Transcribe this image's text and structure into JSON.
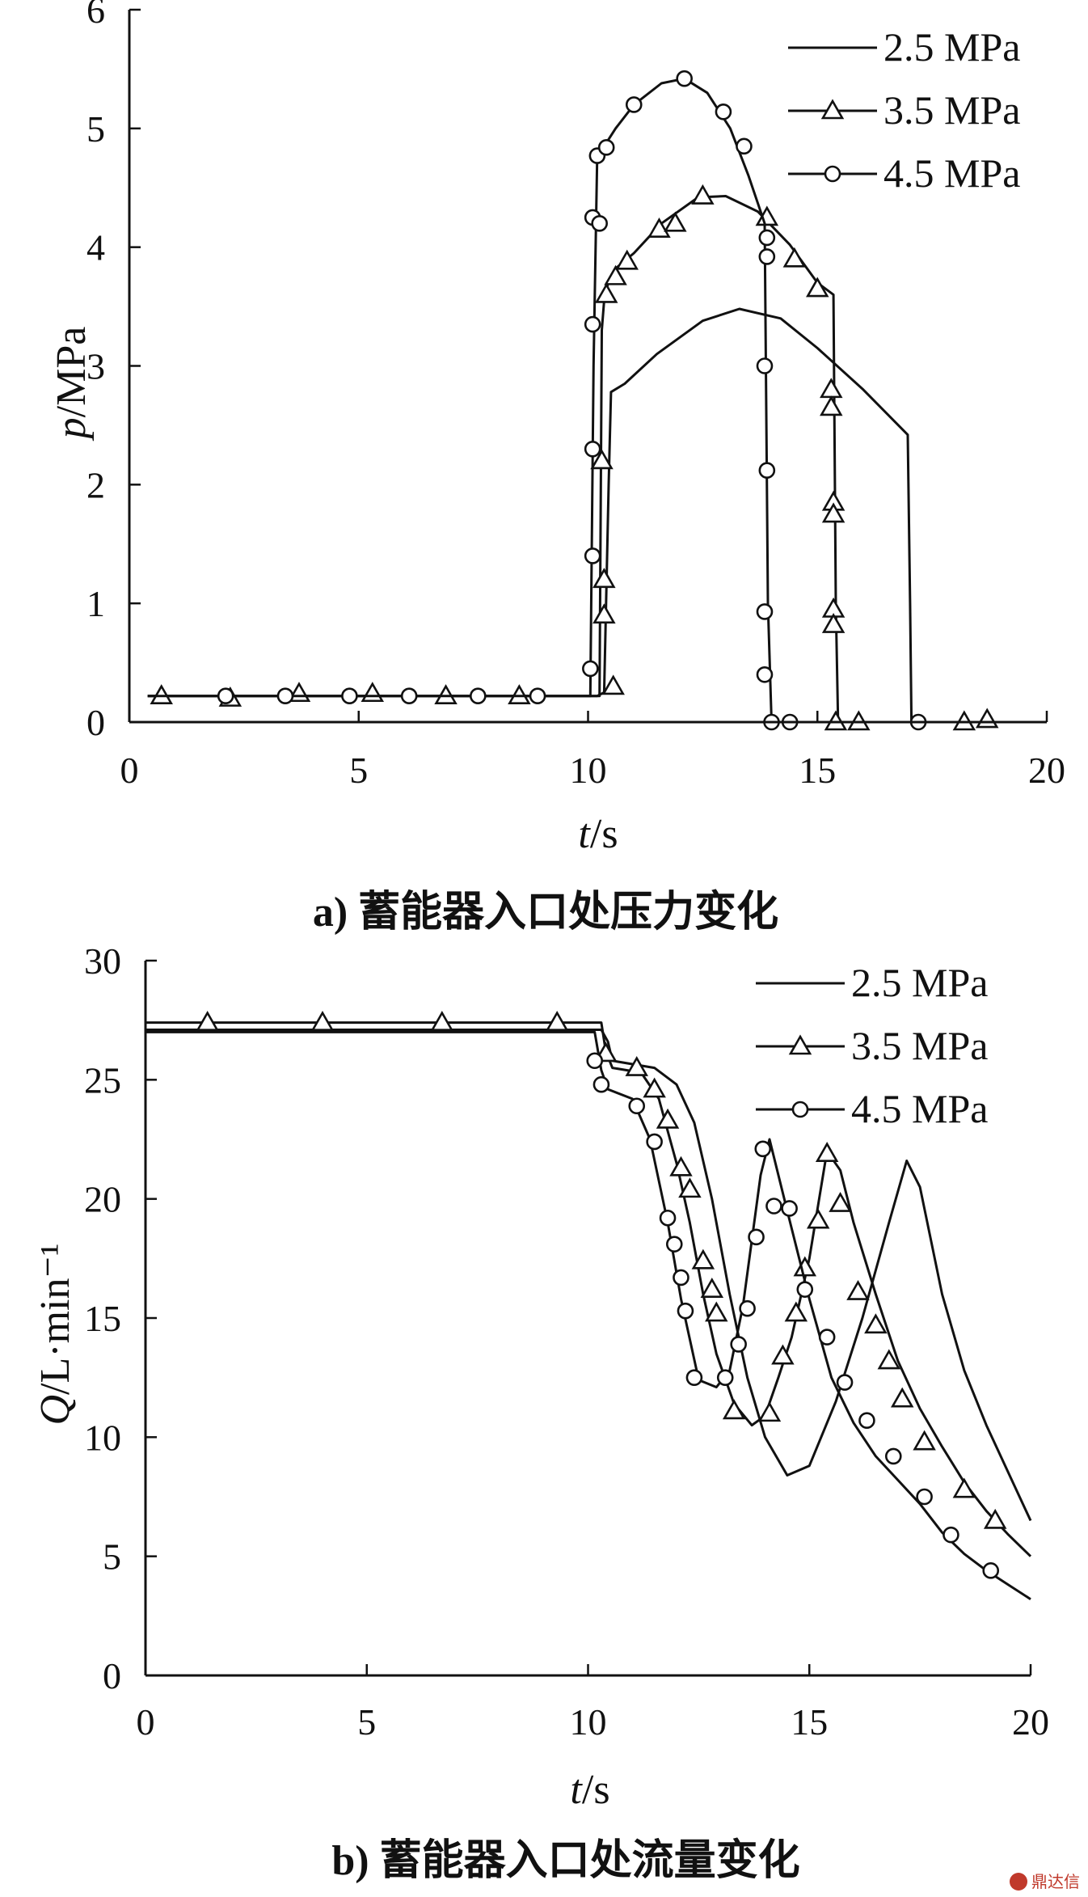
{
  "chart_data": [
    {
      "id": "a",
      "type": "line",
      "caption": "a)  蓄能器入口处压力变化",
      "xlabel": "t/s",
      "ylabel": "p/MPa",
      "xlim": [
        0,
        20
      ],
      "ylim": [
        0,
        6
      ],
      "xticks": [
        0,
        5,
        10,
        15,
        20
      ],
      "yticks": [
        0,
        1,
        2,
        3,
        4,
        5,
        6
      ],
      "legend_position": "top-right",
      "series": [
        {
          "name": "2.5 MPa",
          "marker": "none",
          "x": [
            0.4,
            10.2,
            10.35,
            10.45,
            10.5,
            10.8,
            11.5,
            12.5,
            13.3,
            14.2,
            15.0,
            16.0,
            16.97,
            17.02,
            17.05,
            20.0
          ],
          "y": [
            0.22,
            0.22,
            0.25,
            2.0,
            2.78,
            2.85,
            3.1,
            3.38,
            3.48,
            3.4,
            3.15,
            2.8,
            2.42,
            1.0,
            0.0,
            0.0
          ]
        },
        {
          "name": "3.5 MPa",
          "marker": "triangle",
          "x": [
            0.4,
            10.25,
            10.3,
            10.35,
            10.45,
            10.6,
            11.0,
            11.6,
            12.4,
            13.0,
            13.7,
            14.4,
            15.0,
            15.35,
            15.4,
            15.45,
            20.0
          ],
          "y": [
            0.22,
            0.22,
            3.3,
            3.55,
            3.72,
            3.82,
            3.95,
            4.2,
            4.42,
            4.43,
            4.3,
            4.02,
            3.7,
            3.6,
            1.0,
            0.0,
            0.0
          ]
        },
        {
          "name": "4.5 MPa",
          "marker": "circle",
          "x": [
            0.4,
            10.05,
            10.12,
            10.2,
            10.35,
            10.6,
            11.0,
            11.6,
            12.1,
            12.6,
            13.1,
            13.5,
            13.85,
            13.92,
            14.0,
            20.0
          ],
          "y": [
            0.22,
            0.22,
            3.0,
            4.8,
            4.85,
            5.0,
            5.2,
            5.38,
            5.42,
            5.3,
            5.0,
            4.6,
            4.2,
            1.0,
            0.0,
            0.0
          ]
        }
      ],
      "marker_points": {
        "3.5 MPa": [
          [
            0.7,
            0.22
          ],
          [
            2.2,
            0.2
          ],
          [
            3.7,
            0.24
          ],
          [
            5.3,
            0.24
          ],
          [
            6.9,
            0.22
          ],
          [
            8.5,
            0.22
          ],
          [
            10.3,
            2.2
          ],
          [
            10.35,
            1.2
          ],
          [
            10.35,
            0.9
          ],
          [
            10.4,
            3.6
          ],
          [
            10.55,
            0.3
          ],
          [
            10.6,
            3.75
          ],
          [
            10.85,
            3.88
          ],
          [
            11.55,
            4.15
          ],
          [
            11.9,
            4.2
          ],
          [
            12.5,
            4.43
          ],
          [
            13.9,
            4.25
          ],
          [
            14.5,
            3.9
          ],
          [
            15.0,
            3.65
          ],
          [
            15.3,
            2.8
          ],
          [
            15.3,
            2.65
          ],
          [
            15.35,
            1.85
          ],
          [
            15.35,
            1.75
          ],
          [
            15.35,
            0.95
          ],
          [
            15.35,
            0.82
          ],
          [
            15.4,
            0.0
          ],
          [
            15.9,
            0.0
          ],
          [
            18.2,
            0.0
          ],
          [
            18.7,
            0.02
          ]
        ],
        "4.5 MPa": [
          [
            2.1,
            0.22
          ],
          [
            3.4,
            0.22
          ],
          [
            4.8,
            0.22
          ],
          [
            6.1,
            0.22
          ],
          [
            7.6,
            0.22
          ],
          [
            8.9,
            0.22
          ],
          [
            10.05,
            0.45
          ],
          [
            10.1,
            1.4
          ],
          [
            10.1,
            2.3
          ],
          [
            10.1,
            3.35
          ],
          [
            10.1,
            4.25
          ],
          [
            10.25,
            4.2
          ],
          [
            10.2,
            4.77
          ],
          [
            10.4,
            4.84
          ],
          [
            11.0,
            5.2
          ],
          [
            12.1,
            5.42
          ],
          [
            12.95,
            5.14
          ],
          [
            13.4,
            4.85
          ],
          [
            13.9,
            4.08
          ],
          [
            13.9,
            3.92
          ],
          [
            13.85,
            3.0
          ],
          [
            13.9,
            2.12
          ],
          [
            13.85,
            0.93
          ],
          [
            13.85,
            0.4
          ],
          [
            14.0,
            0.0
          ],
          [
            14.4,
            0.0
          ],
          [
            17.2,
            0.0
          ]
        ],
        "2.5 MPa": []
      }
    },
    {
      "id": "b",
      "type": "line",
      "caption": "b)  蓄能器入口处流量变化",
      "xlabel": "t/s",
      "ylabel": "Q/L·min⁻¹",
      "xlim": [
        0,
        20
      ],
      "ylim": [
        0,
        30
      ],
      "xticks": [
        0,
        5,
        10,
        15,
        20
      ],
      "yticks": [
        0,
        5,
        10,
        15,
        20,
        25,
        30
      ],
      "legend_position": "top-right",
      "series": [
        {
          "name": "2.5 MPa",
          "marker": "none",
          "x": [
            0.0,
            10.3,
            10.45,
            10.55,
            11.5,
            12.0,
            12.4,
            12.8,
            13.2,
            13.6,
            14.0,
            14.5,
            15.0,
            15.6,
            16.2,
            16.8,
            17.2,
            17.5,
            18.0,
            18.5,
            19.0,
            19.5,
            20.0
          ],
          "y": [
            27.1,
            27.1,
            26.6,
            25.8,
            25.5,
            24.8,
            23.2,
            20.0,
            16.0,
            12.5,
            10.0,
            8.4,
            8.8,
            11.5,
            15.0,
            19.0,
            21.6,
            20.5,
            16.0,
            12.8,
            10.5,
            8.5,
            6.5
          ]
        },
        {
          "name": "3.5 MPa",
          "marker": "triangle",
          "x": [
            0.0,
            10.3,
            10.4,
            10.55,
            11.2,
            11.6,
            12.0,
            12.3,
            12.6,
            12.9,
            13.3,
            13.7,
            14.0,
            14.3,
            14.6,
            15.0,
            15.4,
            15.7,
            16.0,
            16.5,
            17.0,
            17.5,
            18.0,
            18.5,
            19.0,
            19.5,
            20.0
          ],
          "y": [
            27.4,
            27.4,
            26.2,
            25.5,
            25.3,
            24.2,
            21.5,
            19.0,
            16.0,
            13.5,
            11.4,
            10.5,
            10.9,
            12.5,
            14.2,
            17.5,
            22.0,
            21.2,
            19.0,
            16.0,
            13.2,
            11.2,
            9.6,
            8.1,
            6.9,
            5.9,
            5.0
          ]
        },
        {
          "name": "4.5 MPa",
          "marker": "circle",
          "x": [
            0.0,
            10.15,
            10.3,
            10.45,
            11.0,
            11.4,
            11.8,
            12.1,
            12.5,
            12.9,
            13.2,
            13.5,
            13.9,
            14.1,
            14.5,
            15.0,
            15.5,
            16.0,
            16.5,
            17.0,
            17.5,
            18.0,
            18.5,
            19.0,
            19.5,
            20.0
          ],
          "y": [
            27.0,
            27.0,
            25.4,
            24.6,
            24.2,
            22.5,
            19.0,
            15.8,
            12.4,
            12.1,
            12.8,
            15.5,
            21.0,
            22.5,
            19.5,
            15.8,
            12.5,
            10.6,
            9.2,
            8.2,
            7.2,
            6.0,
            5.1,
            4.4,
            3.8,
            3.2
          ]
        }
      ],
      "marker_points": {
        "3.5 MPa": [
          [
            1.4,
            27.4
          ],
          [
            4.0,
            27.4
          ],
          [
            6.7,
            27.4
          ],
          [
            9.3,
            27.4
          ],
          [
            10.4,
            26.1
          ],
          [
            11.1,
            25.5
          ],
          [
            11.5,
            24.6
          ],
          [
            11.8,
            23.3
          ],
          [
            12.1,
            21.3
          ],
          [
            12.3,
            20.4
          ],
          [
            12.6,
            17.4
          ],
          [
            12.8,
            16.2
          ],
          [
            12.9,
            15.2
          ],
          [
            13.3,
            11.1
          ],
          [
            14.1,
            11.0
          ],
          [
            14.4,
            13.4
          ],
          [
            14.7,
            15.2
          ],
          [
            14.9,
            17.1
          ],
          [
            15.2,
            19.1
          ],
          [
            15.4,
            21.9
          ],
          [
            15.7,
            19.8
          ],
          [
            16.1,
            16.1
          ],
          [
            16.5,
            14.7
          ],
          [
            16.8,
            13.2
          ],
          [
            17.1,
            11.6
          ],
          [
            17.6,
            9.8
          ],
          [
            18.5,
            7.8
          ],
          [
            19.2,
            6.5
          ]
        ],
        "4.5 MPa": [
          [
            10.15,
            25.8
          ],
          [
            10.3,
            24.8
          ],
          [
            11.1,
            23.9
          ],
          [
            11.5,
            22.4
          ],
          [
            11.8,
            19.2
          ],
          [
            11.95,
            18.1
          ],
          [
            12.1,
            16.7
          ],
          [
            12.2,
            15.3
          ],
          [
            12.4,
            12.5
          ],
          [
            13.1,
            12.5
          ],
          [
            13.4,
            13.9
          ],
          [
            13.6,
            15.4
          ],
          [
            13.8,
            18.4
          ],
          [
            13.95,
            22.1
          ],
          [
            14.2,
            19.7
          ],
          [
            14.55,
            19.6
          ],
          [
            14.9,
            16.2
          ],
          [
            15.4,
            14.2
          ],
          [
            15.8,
            12.3
          ],
          [
            16.3,
            10.7
          ],
          [
            16.9,
            9.2
          ],
          [
            17.6,
            7.5
          ],
          [
            18.2,
            5.9
          ],
          [
            19.1,
            4.4
          ]
        ],
        "2.5 MPa": []
      }
    }
  ],
  "watermark": "鼎达信"
}
